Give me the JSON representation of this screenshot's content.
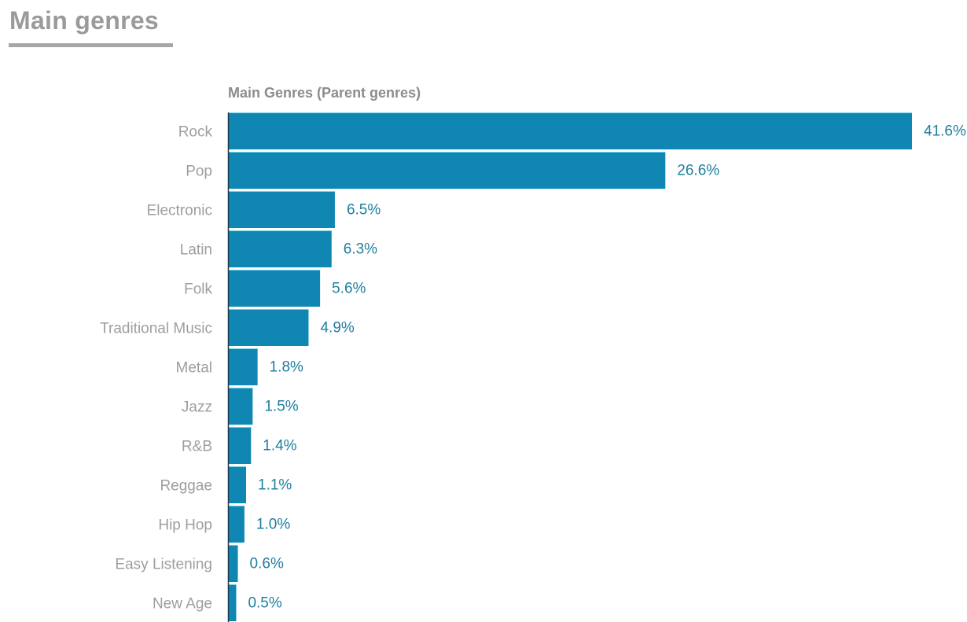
{
  "page": {
    "title": "Main genres"
  },
  "colors": {
    "bar": "#0f87b2",
    "bar_edge": "#6fd3e8",
    "value_label": "#1f7ea0",
    "axis": "#1a3a4a"
  },
  "chart_data": {
    "type": "bar",
    "orientation": "horizontal",
    "title": "Main Genres (Parent genres)",
    "xlabel": "",
    "ylabel": "",
    "xlim": [
      0,
      41.6
    ],
    "grid": false,
    "categories": [
      "Rock",
      "Pop",
      "Electronic",
      "Latin",
      "Folk",
      "Traditional Music",
      "Metal",
      "Jazz",
      "R&B",
      "Reggae",
      "Hip Hop",
      "Easy Listening",
      "New Age"
    ],
    "values": [
      41.6,
      26.6,
      6.5,
      6.3,
      5.6,
      4.9,
      1.8,
      1.5,
      1.4,
      1.1,
      1.0,
      0.6,
      0.5
    ],
    "value_labels": [
      "41.6%",
      "26.6%",
      "6.5%",
      "6.3%",
      "5.6%",
      "4.9%",
      "1.8%",
      "1.5%",
      "1.4%",
      "1.1%",
      "1.0%",
      "0.6%",
      "0.5%"
    ]
  }
}
